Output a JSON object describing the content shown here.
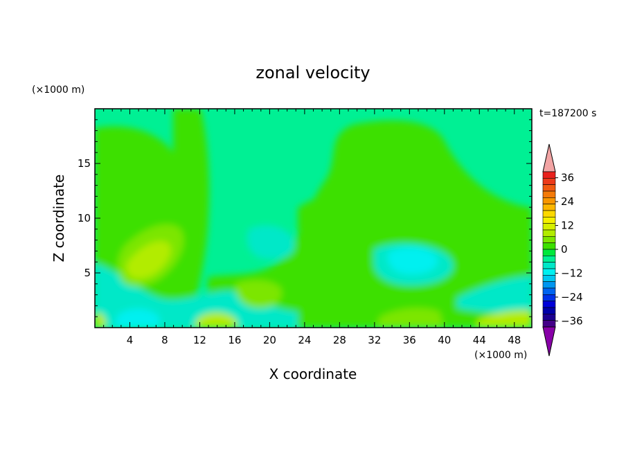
{
  "chart_data": {
    "type": "heatmap",
    "title": "zonal velocity",
    "xlabel": "X coordinate",
    "ylabel": "Z coordinate",
    "x_unit": "(×1000 m)",
    "y_unit": "(×1000 m)",
    "time_label": "t=187200 s",
    "xlim": [
      0,
      50
    ],
    "ylim": [
      0,
      20
    ],
    "x_ticks": [
      4,
      8,
      12,
      16,
      20,
      24,
      28,
      32,
      36,
      40,
      44,
      48
    ],
    "y_ticks": [
      5,
      10,
      15
    ],
    "colorbar": {
      "ticks": [
        36,
        24,
        12,
        0,
        -12,
        -24,
        -36
      ],
      "levels": [
        42,
        36,
        33,
        30,
        27,
        24,
        21,
        18,
        15,
        12,
        9,
        6,
        3,
        0,
        -3,
        -6,
        -9,
        -12,
        -15,
        -18,
        -21,
        -24,
        -27,
        -30,
        -33,
        -36,
        -42
      ],
      "colors": [
        "#f2a4a4",
        "#e8201c",
        "#ec3a1a",
        "#f05a10",
        "#f47a08",
        "#f89600",
        "#fcb600",
        "#fcd800",
        "#f4f000",
        "#d6f000",
        "#b2ec00",
        "#7ce600",
        "#3ce000",
        "#00e83c",
        "#00f094",
        "#00e8c8",
        "#00f0f0",
        "#00c8f0",
        "#0096f0",
        "#0064f0",
        "#0032e8",
        "#0000d8",
        "#0000a8",
        "#1c0090",
        "#440088",
        "#8800a8"
      ]
    },
    "field_features": [
      {
        "name": "background",
        "value": 2
      },
      {
        "name": "positive-band",
        "x": [
          0,
          11
        ],
        "z": [
          0,
          20
        ],
        "value": 4
      },
      {
        "name": "positive-max",
        "x": [
          4,
          9
        ],
        "z": [
          4,
          8
        ],
        "value": 11
      },
      {
        "name": "negative-bottom",
        "x": [
          4,
          10
        ],
        "z": [
          0,
          2
        ],
        "value": -8
      },
      {
        "name": "negative-core",
        "x": [
          33,
          38
        ],
        "z": [
          5,
          8
        ],
        "value": -12
      },
      {
        "name": "positive-bottom-right",
        "x": [
          44,
          50
        ],
        "z": [
          0,
          2
        ],
        "value": 10
      }
    ]
  }
}
